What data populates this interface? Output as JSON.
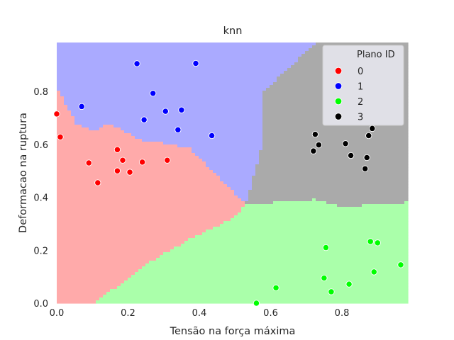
{
  "chart_data": {
    "type": "scatter",
    "title": "knn",
    "xlabel": "Tensão na força máxima",
    "ylabel": "Deformacao na ruptura",
    "xlim": [
      0.0,
      0.985
    ],
    "ylim": [
      0.0,
      0.985
    ],
    "xticks": [
      0.0,
      0.2,
      0.4,
      0.6,
      0.8
    ],
    "yticks": [
      0.0,
      0.2,
      0.4,
      0.6,
      0.8
    ],
    "xtick_labels": [
      "0.0",
      "0.2",
      "0.4",
      "0.6",
      "0.8"
    ],
    "ytick_labels": [
      "0.0",
      "0.2",
      "0.4",
      "0.6",
      "0.8"
    ],
    "grid": false,
    "legend": {
      "title": "Plano ID",
      "position": "top-right"
    },
    "background": "knn decision regions (k-nearest-neighbour classification of the plane)",
    "region_colors": {
      "0": "#ffaaaa",
      "1": "#aaaaff",
      "2": "#aaffaa",
      "3": "#aaaaaa"
    },
    "series": [
      {
        "name": "0",
        "color": "#ff0000",
        "points": [
          [
            0.0,
            0.715
          ],
          [
            0.01,
            0.628
          ],
          [
            0.09,
            0.53
          ],
          [
            0.115,
            0.455
          ],
          [
            0.17,
            0.58
          ],
          [
            0.17,
            0.5
          ],
          [
            0.185,
            0.54
          ],
          [
            0.205,
            0.495
          ],
          [
            0.24,
            0.533
          ],
          [
            0.31,
            0.54
          ]
        ]
      },
      {
        "name": "1",
        "color": "#0000ff",
        "points": [
          [
            0.07,
            0.743
          ],
          [
            0.225,
            0.905
          ],
          [
            0.245,
            0.693
          ],
          [
            0.27,
            0.793
          ],
          [
            0.305,
            0.725
          ],
          [
            0.34,
            0.655
          ],
          [
            0.35,
            0.73
          ],
          [
            0.39,
            0.906
          ],
          [
            0.435,
            0.633
          ]
        ]
      },
      {
        "name": "2",
        "color": "#00ff00",
        "points": [
          [
            0.56,
            0.0
          ],
          [
            0.615,
            0.058
          ],
          [
            0.75,
            0.095
          ],
          [
            0.755,
            0.21
          ],
          [
            0.77,
            0.043
          ],
          [
            0.82,
            0.072
          ],
          [
            0.88,
            0.233
          ],
          [
            0.89,
            0.118
          ],
          [
            0.9,
            0.228
          ],
          [
            0.965,
            0.145
          ]
        ]
      },
      {
        "name": "3",
        "color": "#000000",
        "points": [
          [
            0.72,
            0.575
          ],
          [
            0.725,
            0.638
          ],
          [
            0.735,
            0.598
          ],
          [
            0.81,
            0.603
          ],
          [
            0.825,
            0.558
          ],
          [
            0.865,
            0.508
          ],
          [
            0.87,
            0.55
          ],
          [
            0.875,
            0.633
          ],
          [
            0.885,
            0.66
          ]
        ]
      }
    ]
  }
}
